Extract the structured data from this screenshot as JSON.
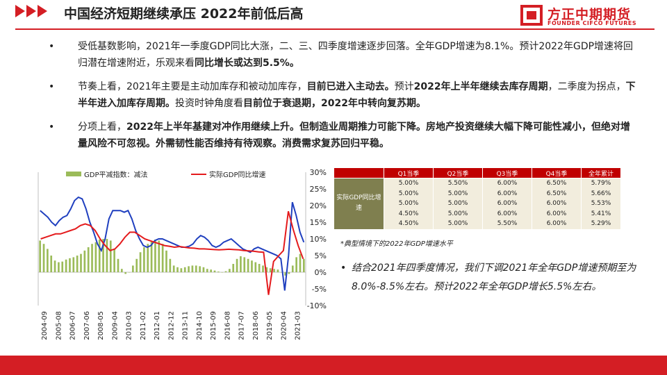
{
  "header": {
    "title": "中国经济短期继续承压  2022年前低后高",
    "logo_cn": "方正中期期货",
    "logo_en": "FOUNDER CIFCO FUTURES",
    "accent": "#d41e24"
  },
  "bullets": [
    {
      "marker": "•",
      "parts": [
        {
          "t": "受低基数影响，2021年一季度GDP同比大涨，二、三、四季度增速逐步回落。全年GDP增速为8.1%。预计2022年GDP增速将回归潜在增速附近，乐观来看",
          "b": false
        },
        {
          "t": "同比增长或达到5.5%。",
          "b": true
        }
      ]
    },
    {
      "marker": "•",
      "parts": [
        {
          "t": "节奏上看，2021年主要是主动加库存和被动加库存，",
          "b": false
        },
        {
          "t": "目前已进入主动去。",
          "b": true
        },
        {
          "t": "预计",
          "b": false
        },
        {
          "t": "2022年上半年继续去库存周期",
          "b": true
        },
        {
          "t": "，二季度为拐点，",
          "b": false
        },
        {
          "t": "下半年进入加库存周期。",
          "b": true
        },
        {
          "t": "投资时钟角度看",
          "b": false
        },
        {
          "t": "目前位于衰退期，2022年中转向复苏期。",
          "b": true
        }
      ]
    },
    {
      "marker": "•",
      "parts": [
        {
          "t": "分项上看，",
          "b": false
        },
        {
          "t": "2022年上半年基建对冲作用继续上升。但制造业周期推力可能下降。房地产投资继续大幅下降可能性减小，但绝对增量风险不可忽视。外需韧性能否维持有待观察。消费需求复苏回归平稳。",
          "b": true
        }
      ]
    }
  ],
  "chart_data": {
    "type": "bar+line",
    "legend": [
      "GDP平减指数：减法",
      "实际GDP同比增速"
    ],
    "colors": {
      "bar": "#9bbb59",
      "line_actual": "#e41a1c",
      "line_blue": "#1f3fbf"
    },
    "x_tick_labels": [
      "2004-09",
      "2005-08",
      "2006-07",
      "2007-06",
      "2008-05",
      "2009-04",
      "2010-03",
      "2011-02",
      "2012-01",
      "2012-12",
      "2013-11",
      "2014-10",
      "2015-09",
      "2016-08",
      "2017-07",
      "2018-06",
      "2019-05",
      "2020-04",
      "2021-03"
    ],
    "right_axis": {
      "labels": [
        "30%",
        "25%",
        "20%",
        "15%",
        "10%",
        "5%",
        "0%",
        "-5%",
        "-10%"
      ],
      "ylim": [
        -10,
        30
      ]
    },
    "bars_deflator_pct": [
      9.5,
      8.5,
      7,
      5,
      3.5,
      3,
      3.2,
      3.8,
      4.2,
      4.5,
      5,
      5.5,
      6.5,
      7.5,
      8.5,
      9,
      9.8,
      10,
      10,
      9.5,
      7,
      4,
      1,
      -0.5,
      0,
      2,
      4,
      6,
      7.5,
      8.5,
      9.3,
      9.8,
      9.5,
      8.5,
      6.5,
      4,
      2,
      1.5,
      1.2,
      1.5,
      1.8,
      2,
      2,
      1.8,
      1.5,
      1,
      0.8,
      0.5,
      0.2,
      0,
      0.3,
      1,
      2.5,
      4,
      4.8,
      4.5,
      4,
      3.5,
      3,
      2.5,
      2,
      1.5,
      1.2,
      1,
      0.8,
      0,
      -1,
      -0.5,
      2,
      4.5,
      5.5,
      4
    ],
    "series_actual_gdp_pct": [
      10.0,
      10.5,
      11.0,
      11.5,
      11.5,
      12.0,
      12.5,
      13.0,
      14.0,
      14.5,
      14.0,
      12.5,
      10.0,
      8.0,
      6.5,
      7.0,
      8.5,
      10.5,
      12.0,
      12.0,
      11.0,
      10.0,
      9.5,
      9.0,
      8.5,
      8.0,
      7.8,
      7.5,
      7.7,
      7.5,
      7.3,
      7.2,
      7.0,
      7.0,
      6.9,
      6.8,
      6.7,
      6.8,
      6.9,
      6.8,
      6.7,
      6.5,
      6.4,
      6.3,
      6.1,
      6.0,
      -6.8,
      3.2,
      4.9,
      6.5,
      18.3,
      12.7,
      7.9,
      4.0
    ],
    "series_blue_pct": [
      18.5,
      17.5,
      16.5,
      15,
      14,
      15.5,
      16.5,
      17,
      19,
      21.5,
      22.5,
      22,
      19,
      15,
      12,
      8.5,
      6.5,
      10,
      16,
      18.5,
      18.5,
      18.5,
      18,
      18.5,
      16,
      12.5,
      10,
      8,
      7.5,
      8,
      9.5,
      10,
      10,
      9.5,
      9,
      8.5,
      8,
      7.5,
      7.5,
      7.8,
      8.5,
      10,
      11,
      10.5,
      9.5,
      8,
      7.5,
      8,
      9,
      9.5,
      10,
      9,
      8,
      7,
      6.5,
      6,
      7,
      7.5,
      7,
      6.5,
      6,
      5.5,
      5,
      4,
      -5.5,
      5,
      21,
      17,
      12,
      9
    ]
  },
  "table": {
    "headers": [
      "",
      "Q1当季",
      "Q2当季",
      "Q3当季",
      "Q4当季",
      "全年累计"
    ],
    "row_label": "实际GDP同比增速",
    "rows": [
      [
        "5.00%",
        "5.50%",
        "6.00%",
        "6.50%",
        "5.79%"
      ],
      [
        "5.00%",
        "5.00%",
        "6.00%",
        "6.50%",
        "5.66%"
      ],
      [
        "5.00%",
        "5.00%",
        "6.00%",
        "6.00%",
        "5.53%"
      ],
      [
        "4.50%",
        "5.00%",
        "6.00%",
        "6.00%",
        "5.41%"
      ],
      [
        "4.50%",
        "5.00%",
        "5.50%",
        "6.00%",
        "5.29%"
      ]
    ]
  },
  "note": "*典型情境下的2022年GDP增速水平",
  "conclusion": {
    "marker": "•",
    "text": "结合2021年四季度情况，我们下调2021年全年GDP增速预期至为8.0%-8.5%左右。预计2022年全年GDP增长5.5%左右。"
  }
}
